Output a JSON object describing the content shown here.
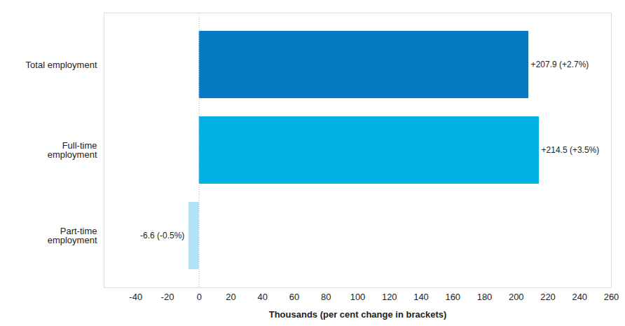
{
  "chart_data": {
    "type": "bar",
    "orientation": "horizontal",
    "categories": [
      "Total employment",
      "Full-time employment",
      "Part-time employment"
    ],
    "values": [
      207.9,
      214.5,
      -6.6
    ],
    "value_labels": [
      "+207.9 (+2.7%)",
      "+214.5 (+3.5%)",
      "-6.6 (-0.5%)"
    ],
    "colors": [
      "#0579c1",
      "#00b1e1",
      "#b3e1f7"
    ],
    "data_labels": true,
    "x_label": "Thousands (per cent change in brackets)",
    "xlim": [
      -60,
      260
    ],
    "xticks": [
      -40,
      -20,
      0,
      20,
      40,
      60,
      80,
      100,
      120,
      140,
      160,
      180,
      200,
      220,
      240,
      260
    ],
    "grid": false
  }
}
